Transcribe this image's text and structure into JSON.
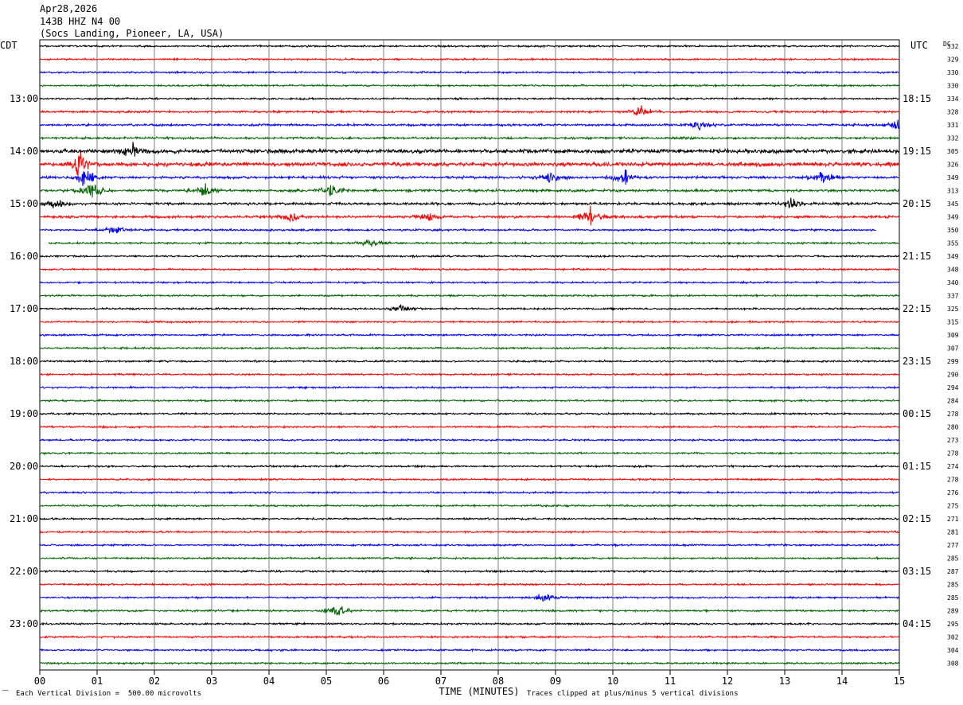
{
  "header": {
    "date": "Apr28,2026",
    "station": "143B HHZ N4 00",
    "location": "(Socs Landing, Pioneer, LA, USA)"
  },
  "left_timezone": "CDT",
  "right_timezone": "UTC",
  "dc_label": "DC",
  "footer": {
    "scale": "Each Vertical Division =  500.00 microvolts",
    "clip": "Traces clipped at plus/minus 5 vertical divisions",
    "mark": "⁀"
  },
  "chart_data": {
    "type": "line",
    "title": "",
    "xlabel": "TIME (MINUTES)",
    "x_ticks": [
      "00",
      "01",
      "02",
      "03",
      "04",
      "05",
      "06",
      "07",
      "08",
      "09",
      "10",
      "11",
      "12",
      "13",
      "14",
      "15"
    ],
    "xlim": [
      0,
      15
    ],
    "trace_colors": [
      "#000000",
      "#ff0000",
      "#0000ff",
      "#006400"
    ],
    "grid": true,
    "left_hour_labels": [
      "13:00",
      "14:00",
      "15:00",
      "16:00",
      "17:00",
      "18:00",
      "19:00",
      "20:00",
      "21:00",
      "22:00",
      "23:00"
    ],
    "right_hour_labels": [
      "18:15",
      "19:15",
      "20:15",
      "21:15",
      "22:15",
      "23:15",
      "00:15",
      "01:15",
      "02:15",
      "03:15",
      "04:15"
    ],
    "first_hour_label_row": 4,
    "dc_offsets": [
      332,
      329,
      330,
      330,
      334,
      328,
      331,
      332,
      305,
      326,
      349,
      313,
      345,
      349,
      350,
      355,
      349,
      348,
      340,
      337,
      325,
      315,
      309,
      307,
      299,
      290,
      294,
      284,
      278,
      280,
      273,
      278,
      274,
      278,
      276,
      275,
      271,
      281,
      277,
      285,
      287,
      285,
      285,
      289,
      295,
      302,
      304,
      308
    ],
    "trace_extent_minutes": {
      "14": [
        0,
        14.6
      ],
      "15": [
        0.15,
        15
      ]
    },
    "events": [
      {
        "row": 5,
        "minute": 10.5,
        "amplitude": 7
      },
      {
        "row": 6,
        "minute": 11.5,
        "amplitude": 6
      },
      {
        "row": 6,
        "minute": 15.0,
        "amplitude": 8
      },
      {
        "row": 8,
        "minute": 1.6,
        "amplitude": 8
      },
      {
        "row": 9,
        "minute": 0.7,
        "amplitude": 14
      },
      {
        "row": 10,
        "minute": 0.8,
        "amplitude": 12
      },
      {
        "row": 10,
        "minute": 10.2,
        "amplitude": 10
      },
      {
        "row": 10,
        "minute": 13.7,
        "amplitude": 9
      },
      {
        "row": 10,
        "minute": 8.9,
        "amplitude": 7
      },
      {
        "row": 11,
        "minute": 0.9,
        "amplitude": 14
      },
      {
        "row": 11,
        "minute": 2.9,
        "amplitude": 8
      },
      {
        "row": 11,
        "minute": 5.1,
        "amplitude": 8
      },
      {
        "row": 12,
        "minute": 0.3,
        "amplitude": 6
      },
      {
        "row": 12,
        "minute": 13.1,
        "amplitude": 6
      },
      {
        "row": 13,
        "minute": 9.6,
        "amplitude": 11
      },
      {
        "row": 13,
        "minute": 4.4,
        "amplitude": 6
      },
      {
        "row": 13,
        "minute": 6.8,
        "amplitude": 5
      },
      {
        "row": 14,
        "minute": 1.3,
        "amplitude": 6
      },
      {
        "row": 15,
        "minute": 5.8,
        "amplitude": 5
      },
      {
        "row": 20,
        "minute": 6.3,
        "amplitude": 4
      },
      {
        "row": 42,
        "minute": 8.8,
        "amplitude": 7
      },
      {
        "row": 43,
        "minute": 5.2,
        "amplitude": 8
      }
    ]
  }
}
